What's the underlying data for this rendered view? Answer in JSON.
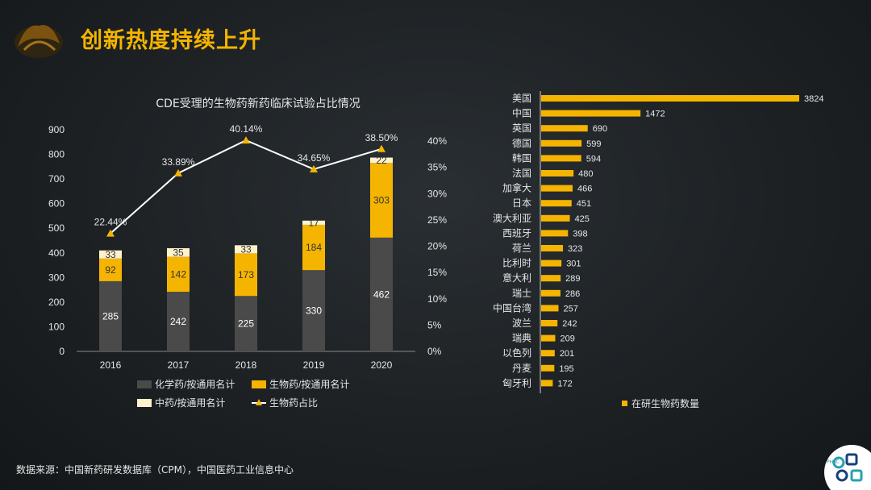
{
  "page": {
    "title": "创新热度持续上升",
    "source": "数据来源：中国新药研发数据库（CPM），中国医药工业信息中心",
    "logo_text": "PHIIC",
    "colors": {
      "accent": "#f5b400",
      "chemical": "#4a4a4a",
      "biologic": "#f5b400",
      "tcm": "#fdf2cc",
      "line": "#ffffff"
    }
  },
  "chart_data": [
    {
      "type": "bar",
      "stacked": true,
      "title": "CDE受理的生物药新药临床试验占比情况",
      "categories": [
        "2016",
        "2017",
        "2018",
        "2019",
        "2020"
      ],
      "series": [
        {
          "name": "化学药/按通用名计",
          "values": [
            285,
            242,
            225,
            330,
            462
          ],
          "color": "#4a4a4a"
        },
        {
          "name": "生物药/按通用名计",
          "values": [
            92,
            142,
            173,
            184,
            303
          ],
          "color": "#f5b400"
        },
        {
          "name": "中药/按通用名计",
          "values": [
            33,
            35,
            33,
            17,
            22
          ],
          "color": "#fdf2cc"
        }
      ],
      "line_series": {
        "name": "生物药占比",
        "values": [
          22.44,
          33.89,
          40.14,
          34.65,
          38.5
        ],
        "labels": [
          "22.44%",
          "33.89%",
          "40.14%",
          "34.65%",
          "38.50%"
        ]
      },
      "ylim": [
        0,
        900
      ],
      "yticks": [
        "0",
        "100",
        "200",
        "300",
        "400",
        "500",
        "600",
        "700",
        "800",
        "900"
      ],
      "y2lim": [
        0,
        40
      ],
      "y2ticks": [
        "0%",
        "5%",
        "10%",
        "15%",
        "20%",
        "25%",
        "30%",
        "35%",
        "40%"
      ],
      "legend_position": "bottom"
    },
    {
      "type": "bar",
      "orientation": "horizontal",
      "title": "",
      "series_name": "在研生物药数量",
      "categories": [
        "美国",
        "中国",
        "英国",
        "德国",
        "韩国",
        "法国",
        "加拿大",
        "日本",
        "澳大利亚",
        "西班牙",
        "荷兰",
        "比利时",
        "意大利",
        "瑞士",
        "中国台湾",
        "波兰",
        "瑞典",
        "以色列",
        "丹麦",
        "匈牙利"
      ],
      "values": [
        3824,
        1472,
        690,
        599,
        594,
        480,
        466,
        451,
        425,
        398,
        323,
        301,
        289,
        286,
        257,
        242,
        209,
        201,
        195,
        172
      ],
      "xlim": [
        0,
        3824
      ],
      "legend_position": "bottom"
    }
  ]
}
